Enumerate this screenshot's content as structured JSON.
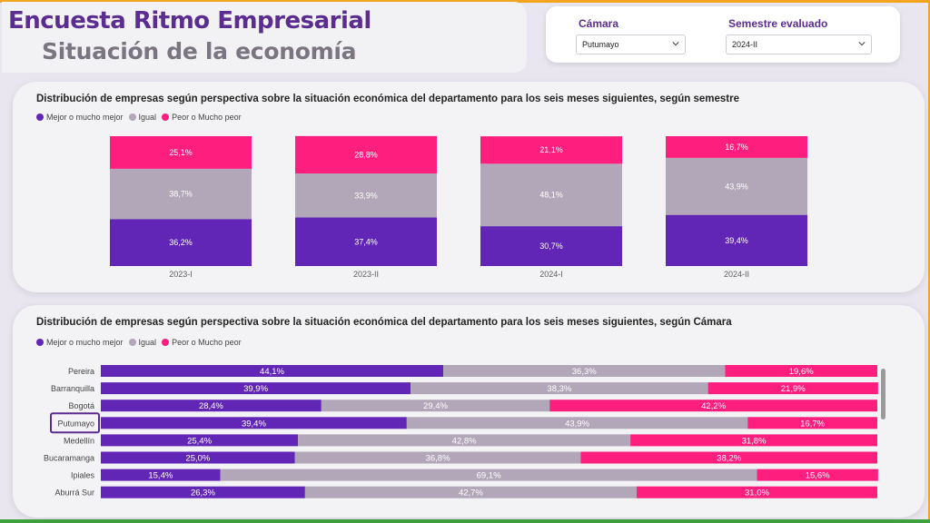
{
  "header": {
    "title": "Encuesta Ritmo Empresarial",
    "subtitle": "Situación de la economía"
  },
  "filters": {
    "camara_label": "Cámara",
    "camara_value": "Putumayo",
    "semestre_label": "Semestre evaluado",
    "semestre_value": "2024-II"
  },
  "colors": {
    "mejor": "#6126b5",
    "igual": "#b1a7b8",
    "peor": "#fd1e7d"
  },
  "legend": {
    "mejor": "Mejor o mucho mejor",
    "igual": "Igual",
    "peor": "Peor o Mucho peor"
  },
  "chart_data": [
    {
      "type": "bar",
      "stacked": true,
      "orientation": "vertical",
      "title": "Distribución de empresas según perspectiva sobre la situación económica del departamento para los seis meses siguientes, según semestre",
      "categories": [
        "2023-I",
        "2023-II",
        "2024-I",
        "2024-II"
      ],
      "series": [
        {
          "name": "Mejor o mucho mejor",
          "values": [
            36.2,
            37.4,
            30.7,
            39.4
          ],
          "labels": [
            "36,2%",
            "37,4%",
            "30,7%",
            "39,4%"
          ]
        },
        {
          "name": "Igual",
          "values": [
            38.7,
            33.9,
            48.1,
            43.9
          ],
          "labels": [
            "38,7%",
            "33,9%",
            "48,1%",
            "43,9%"
          ]
        },
        {
          "name": "Peor o Mucho peor",
          "values": [
            25.1,
            28.8,
            21.1,
            16.7
          ],
          "labels": [
            "25,1%",
            "28,8%",
            "21,1%",
            "16,7%"
          ]
        }
      ],
      "ylim": [
        0,
        100
      ],
      "legend_position": "top-left"
    },
    {
      "type": "bar",
      "stacked": true,
      "orientation": "horizontal",
      "title": "Distribución de empresas según perspectiva sobre la situación económica del departamento para los seis meses siguientes, según Cámara",
      "categories": [
        "Pereira",
        "Barranquilla",
        "Bogotá",
        "Putumayo",
        "Medellín",
        "Bucaramanga",
        "Ipiales",
        "Aburrá Sur"
      ],
      "highlighted": "Putumayo",
      "series": [
        {
          "name": "Mejor o mucho mejor",
          "values": [
            44.1,
            39.9,
            28.4,
            39.4,
            25.4,
            25.0,
            15.4,
            26.3
          ],
          "labels": [
            "44,1%",
            "39,9%",
            "28,4%",
            "39,4%",
            "25,4%",
            "25,0%",
            "15,4%",
            "26,3%"
          ]
        },
        {
          "name": "Igual",
          "values": [
            36.3,
            38.3,
            29.4,
            43.9,
            42.8,
            36.8,
            69.1,
            42.7
          ],
          "labels": [
            "36,3%",
            "38,3%",
            "29,4%",
            "43,9%",
            "42,8%",
            "36,8%",
            "69,1%",
            "42,7%"
          ]
        },
        {
          "name": "Peor o Mucho peor",
          "values": [
            19.6,
            21.9,
            42.2,
            16.7,
            31.8,
            38.2,
            15.6,
            31.0
          ],
          "labels": [
            "19,6%",
            "21,9%",
            "42,2%",
            "16,7%",
            "31,8%",
            "38,2%",
            "15,6%",
            "31,0%"
          ]
        }
      ],
      "xlim": [
        0,
        100
      ],
      "legend_position": "top-left"
    }
  ]
}
